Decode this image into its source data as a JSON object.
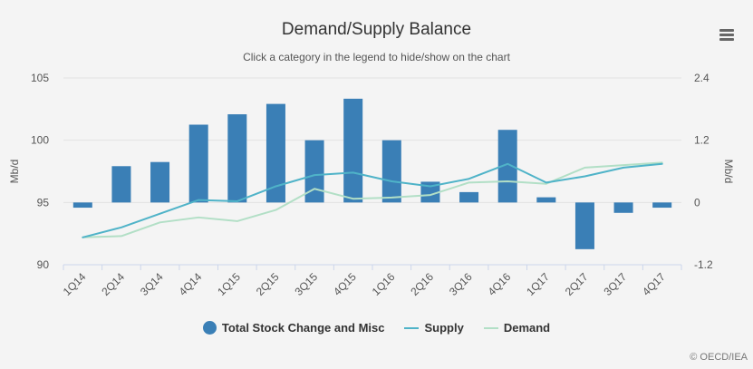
{
  "chart_data": {
    "type": "bar+line",
    "title": "Demand/Supply Balance",
    "subtitle": "Click a category in the legend to hide/show on the chart",
    "categories": [
      "1Q14",
      "2Q14",
      "3Q14",
      "4Q14",
      "1Q15",
      "2Q15",
      "3Q15",
      "4Q15",
      "1Q16",
      "2Q16",
      "3Q16",
      "4Q16",
      "1Q17",
      "2Q17",
      "3Q17",
      "4Q17"
    ],
    "left_axis": {
      "label": "Mb/d",
      "min": 90,
      "max": 105,
      "ticks": [
        90,
        95,
        100,
        105
      ]
    },
    "right_axis": {
      "label": "Mb/d",
      "min": -1.2,
      "max": 2.4,
      "ticks": [
        "-1.2",
        "0",
        "1.2",
        "2.4"
      ],
      "tick_values": [
        -1.2,
        0,
        1.2,
        2.4
      ]
    },
    "series": [
      {
        "name": "Total Stock Change and Misc",
        "type": "bar",
        "axis": "right",
        "color": "#3a7fb6",
        "values": [
          -0.1,
          0.7,
          0.78,
          1.5,
          1.7,
          1.9,
          1.2,
          2.0,
          1.2,
          0.4,
          0.2,
          1.4,
          0.1,
          -0.9,
          -0.2,
          -0.1
        ]
      },
      {
        "name": "Supply",
        "type": "line",
        "axis": "left",
        "color": "#4fb3c8",
        "values": [
          92.2,
          93.0,
          94.1,
          95.2,
          95.1,
          96.3,
          97.2,
          97.4,
          96.7,
          96.3,
          96.9,
          98.1,
          96.6,
          97.1,
          97.8,
          98.1
        ]
      },
      {
        "name": "Demand",
        "type": "line",
        "axis": "left",
        "color": "#b2dfc6",
        "values": [
          92.2,
          92.3,
          93.4,
          93.8,
          93.5,
          94.4,
          96.1,
          95.3,
          95.4,
          95.6,
          96.6,
          96.7,
          96.5,
          97.8,
          98.0,
          98.2
        ]
      }
    ],
    "legend": [
      "Total Stock Change and Misc",
      "Supply",
      "Demand"
    ],
    "credit": "© OECD/IEA"
  }
}
